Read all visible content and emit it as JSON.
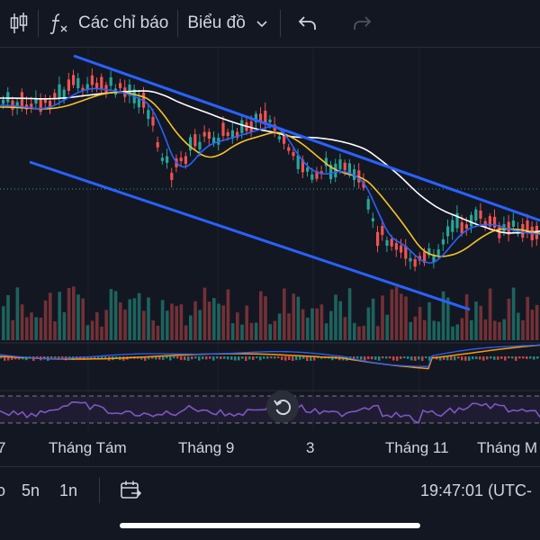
{
  "toolbar": {
    "indicators_label": "Các chỉ báo",
    "chart_label": "Biểu đồ",
    "icons": [
      "candlestick-icon",
      "function-icon",
      "chevron-down-icon",
      "undo-icon",
      "redo-icon"
    ]
  },
  "time_axis": [
    "7",
    "Tháng Tám",
    "Tháng 9",
    "3",
    "Tháng 11",
    "Tháng M"
  ],
  "bottom_bar": {
    "timeframes": [
      "o",
      "5n",
      "1n"
    ],
    "clock": "19:47:01 (UTC-"
  },
  "colors": {
    "background": "#131722",
    "up_candle": "#26a69a",
    "down_candle": "#ef5350",
    "trendline": "#2962ff",
    "ma_fast": "#2962ff",
    "ma_mid": "#f7c325",
    "ma_slow": "#ffffff",
    "rsi": "#7e57c2"
  }
}
